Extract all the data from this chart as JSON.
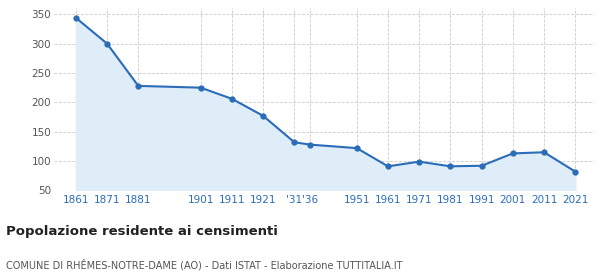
{
  "x_positions": [
    1861,
    1871,
    1881,
    1901,
    1911,
    1921,
    1931,
    1936,
    1951,
    1961,
    1971,
    1981,
    1991,
    2001,
    2011,
    2021
  ],
  "values": [
    344,
    300,
    228,
    225,
    206,
    177,
    132,
    128,
    122,
    91,
    99,
    91,
    92,
    113,
    115,
    82
  ],
  "xtick_pos": [
    1861,
    1871,
    1881,
    1901,
    1911,
    1921,
    1931,
    1936,
    1951,
    1961,
    1971,
    1981,
    1991,
    2001,
    2011,
    2021
  ],
  "xtick_labels": [
    "1861",
    "1871",
    "1881",
    "1901",
    "1911",
    "1921",
    "'31",
    "'36",
    "1951",
    "1961",
    "1971",
    "1981",
    "1991",
    "2001",
    "2011",
    "2021"
  ],
  "line_color": "#2b6cb8",
  "fill_color": "#deedf8",
  "marker_color": "#2b6cb8",
  "background_color": "#ffffff",
  "grid_color": "#cccccc",
  "title": "Popolazione residente ai censimenti",
  "subtitle": "COMUNE DI RHÊMES-NOTRE-DAME (AO) - Dati ISTAT - Elaborazione TUTTITALIA.IT",
  "title_color": "#222222",
  "subtitle_color": "#555555",
  "xlabel_color": "#2b6cb8",
  "ylabel_color": "#555555",
  "ylim": [
    50,
    360
  ],
  "yticks": [
    50,
    100,
    150,
    200,
    250,
    300,
    350
  ],
  "xlim": [
    1854,
    2027
  ]
}
